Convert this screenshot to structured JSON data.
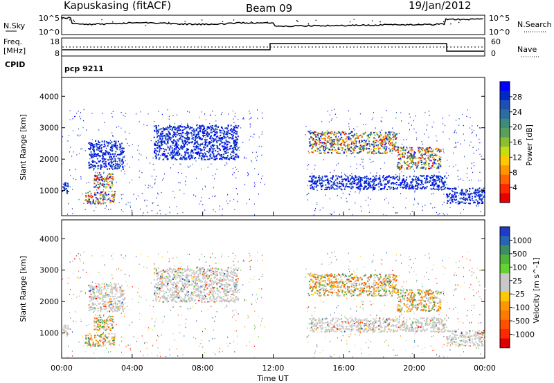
{
  "header": {
    "station": "Kapuskasing (fitACF)",
    "beam": "Beam 09",
    "date": "19/Jan/2012"
  },
  "noise_panel": {
    "left_label": "N.Sky",
    "left_ticks": [
      "10^5",
      "10^0"
    ],
    "right_ticks": [
      "10^5",
      "10^0"
    ],
    "right_label": "N.Search"
  },
  "freq_panel": {
    "left_label_1": "Freq.",
    "left_label_2": "[MHz]",
    "left_ticks": [
      "18",
      "8"
    ],
    "right_ticks": [
      "60",
      "0"
    ],
    "right_label": "Nave"
  },
  "cpid_panel": {
    "label": "CPID",
    "program": "pcp 9211"
  },
  "chart_data": [
    {
      "type": "heatmap",
      "panel": "power",
      "ylabel": "Slant Range [km]",
      "ylim": [
        200,
        4600
      ],
      "y_ticks": [
        "1000",
        "2000",
        "3000",
        "4000"
      ],
      "xlim": [
        "00:00",
        "24:00"
      ],
      "colorbar": {
        "label": "Power [dB]",
        "ticks": [
          "4",
          "8",
          "12",
          "16",
          "20",
          "24",
          "28"
        ],
        "colors": [
          "#0000ff",
          "#0028c8",
          "#1e50b4",
          "#2d6ea0",
          "#3c8c78",
          "#5aa05a",
          "#8cbe32",
          "#c8dc14",
          "#ffc800",
          "#ff9600",
          "#ff6400",
          "#ff2800",
          "#e60000"
        ]
      },
      "echo_regions": [
        {
          "t0": 0.0,
          "t1": 0.4,
          "r0": 900,
          "r1": 1300,
          "value": "blue"
        },
        {
          "t0": 1.3,
          "t1": 3.0,
          "r0": 600,
          "r1": 1000,
          "value": "mixed"
        },
        {
          "t0": 1.8,
          "t1": 2.9,
          "r0": 1100,
          "r1": 1600,
          "value": "mixed"
        },
        {
          "t0": 1.5,
          "t1": 3.5,
          "r0": 1700,
          "r1": 2600,
          "value": "blue"
        },
        {
          "t0": 5.2,
          "t1": 10.0,
          "r0": 2000,
          "r1": 3100,
          "value": "blue"
        },
        {
          "t0": 14.0,
          "t1": 21.8,
          "r0": 1050,
          "r1": 1500,
          "value": "blue"
        },
        {
          "t0": 14.0,
          "t1": 19.0,
          "r0": 2200,
          "r1": 2900,
          "value": "mixed"
        },
        {
          "t0": 19.0,
          "t1": 21.5,
          "r0": 1700,
          "r1": 2400,
          "value": "mixed"
        },
        {
          "t0": 21.8,
          "t1": 24.0,
          "r0": 600,
          "r1": 1100,
          "value": "blue"
        }
      ]
    },
    {
      "type": "heatmap",
      "panel": "velocity",
      "ylabel": "Slant Range [km]",
      "ylim": [
        200,
        4600
      ],
      "y_ticks": [
        "1000",
        "2000",
        "3000",
        "4000"
      ],
      "xlim": [
        "00:00",
        "24:00"
      ],
      "xlabel": "Time UT",
      "x_ticks": [
        "00:00",
        "04:00",
        "08:00",
        "12:00",
        "16:00",
        "20:00",
        "00:00"
      ],
      "colorbar": {
        "label": "Velocity [m s^-1]",
        "ticks": [
          "1000",
          "500",
          "100",
          "25",
          "-25",
          "-100",
          "-500",
          "-1000"
        ],
        "colors": [
          "#1e3cc8",
          "#2864b4",
          "#3c8c64",
          "#50b43c",
          "#64d232",
          "#c8c8c8",
          "#c8c8c8",
          "#ffc800",
          "#ff9600",
          "#ff7800",
          "#ff5000",
          "#ff2800",
          "#dc0000"
        ]
      }
    }
  ]
}
